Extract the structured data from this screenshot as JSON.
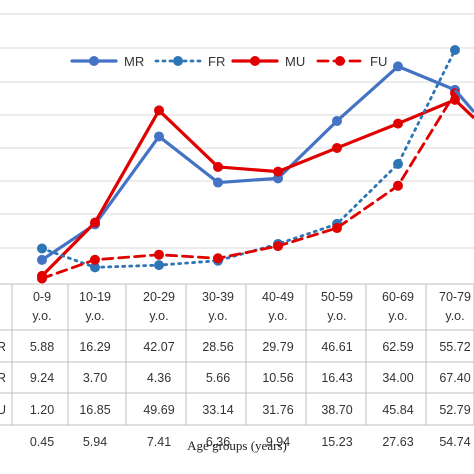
{
  "chart_data": {
    "type": "line",
    "xlabel": "Age groups (years)",
    "categories": [
      [
        "0-9",
        "y.o."
      ],
      [
        "10-19",
        "y.o."
      ],
      [
        "20-29",
        "y.o."
      ],
      [
        "30-39",
        "y.o."
      ],
      [
        "40-49",
        "y.o."
      ],
      [
        "50-59",
        "y.o."
      ],
      [
        "60-69",
        "y.o."
      ],
      [
        "70-79",
        "y.o."
      ]
    ],
    "row_labels": [
      "R",
      "R",
      "U",
      ""
    ],
    "legend_position": "top",
    "grid": true,
    "ylim": [
      0,
      67.4
    ],
    "series": [
      {
        "name": "MR",
        "color": "#4472c4",
        "style": "solid",
        "values": [
          5.88,
          16.29,
          42.07,
          28.56,
          29.79,
          46.61,
          62.59,
          55.72
        ]
      },
      {
        "name": "FR",
        "color": "#2e75b6",
        "style": "dotted",
        "values": [
          9.24,
          3.7,
          4.36,
          5.66,
          10.56,
          16.43,
          34.0,
          67.4
        ]
      },
      {
        "name": "MU",
        "color": "#e00000",
        "style": "solid",
        "values": [
          1.2,
          16.85,
          49.69,
          33.14,
          31.76,
          38.7,
          45.84,
          52.79
        ]
      },
      {
        "name": "FU",
        "color": "#e00000",
        "style": "dashed",
        "values": [
          0.45,
          5.94,
          7.41,
          6.36,
          9.94,
          15.23,
          27.63,
          54.74
        ]
      }
    ],
    "table": [
      [
        "5.88",
        "16.29",
        "42.07",
        "28.56",
        "29.79",
        "46.61",
        "62.59",
        "55.72"
      ],
      [
        "9.24",
        "3.70",
        "4.36",
        "5.66",
        "10.56",
        "16.43",
        "34.00",
        "67.40"
      ],
      [
        "1.20",
        "16.85",
        "49.69",
        "33.14",
        "31.76",
        "38.70",
        "45.84",
        "52.79"
      ],
      [
        "0.45",
        "5.94",
        "7.41",
        "6.36",
        "9.94",
        "15.23",
        "27.63",
        "54.74"
      ]
    ]
  }
}
